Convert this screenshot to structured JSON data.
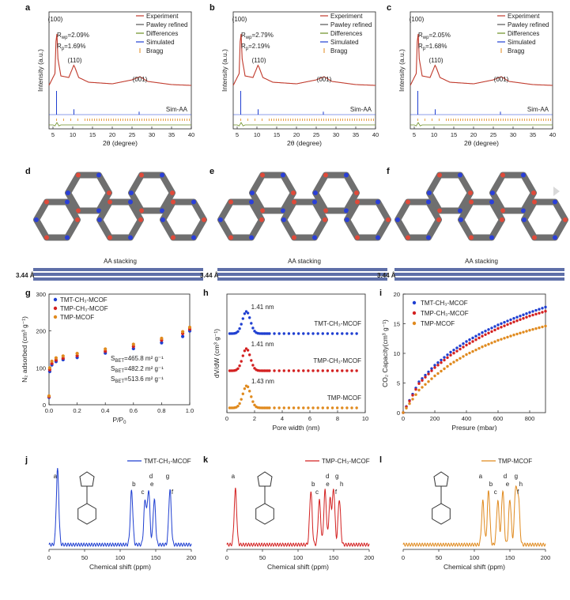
{
  "xrd": {
    "panels": [
      {
        "label": "a",
        "rwp": "2.09%",
        "rp": "1.69%"
      },
      {
        "label": "b",
        "rwp": "2.79%",
        "rp": "2.19%"
      },
      {
        "label": "c",
        "rwp": "2.05%",
        "rp": "1.68%"
      }
    ],
    "legend": [
      "Experiment",
      "Pawley refined",
      "Differences",
      "Simulated",
      "Bragg"
    ],
    "peaks": [
      "(100)",
      "(110)",
      "(001)"
    ],
    "sim_label": "Sim-AA",
    "xlabel": "2θ (degree)",
    "ylabel": "Intensity (a.u.)",
    "xticks": [
      "5",
      "10",
      "15",
      "20",
      "25",
      "30",
      "35",
      "40"
    ],
    "colors": {
      "experiment": "#c0392b",
      "pawley": "#555555",
      "difference": "#6b8e23",
      "simulated": "#1f3fd1",
      "bragg": "#e08a1e"
    }
  },
  "structures": {
    "panels": [
      {
        "label": "d"
      },
      {
        "label": "e"
      },
      {
        "label": "f"
      }
    ],
    "stack_label": "AA stacking",
    "spacing": "3.44 Å"
  },
  "n2": {
    "label": "g",
    "xlabel": "P/P",
    "xlabel_sub": "0",
    "ylabel": "N₂ adsorbed (cm³ g⁻¹)",
    "yticks": [
      "0",
      "100",
      "200",
      "300"
    ],
    "xticks": [
      "0.0",
      "0.2",
      "0.4",
      "0.6",
      "0.8",
      "1.0"
    ],
    "legend": [
      "TMT-CH₃-MCOF",
      "TMP-CH₃-MCOF",
      "TMP-MCOF"
    ],
    "sbet": [
      "S",
      "S",
      "S"
    ],
    "sbet_vals": [
      "465.8 m² g⁻¹",
      "482.2 m² g⁻¹",
      "513.6 m² g⁻¹"
    ]
  },
  "pore": {
    "label": "h",
    "xlabel": "Pore width (nm)",
    "ylabel": "dV/dW (cm³ g⁻¹)",
    "xticks": [
      "0",
      "2",
      "4",
      "6",
      "8",
      "10"
    ],
    "peaks": [
      "1.41 nm",
      "1.41 nm",
      "1.43 nm"
    ],
    "names": [
      "TMT-CH₃-MCOF",
      "TMP-CH₃-MCOF",
      "TMP-MCOF"
    ]
  },
  "co2": {
    "label": "i",
    "xlabel": "Presure (mbar)",
    "ylabel": "CO₂ Capacity(cm³ g⁻¹)",
    "xticks": [
      "0",
      "200",
      "400",
      "600",
      "800"
    ],
    "yticks": [
      "0",
      "5",
      "10",
      "15",
      "20"
    ],
    "legend": [
      "TMT-CH₃-MCOF",
      "TMP-CH₃-MCOF",
      "TMP-MCOF"
    ]
  },
  "nmr": {
    "xlabel": "Chemical shift (ppm)",
    "xticks": [
      "0",
      "50",
      "100",
      "150",
      "200"
    ],
    "panels": [
      {
        "label": "j",
        "name": "TMT-CH₃-MCOF",
        "peaks": [
          "a",
          "b",
          "c",
          "d",
          "e",
          "f",
          "g"
        ]
      },
      {
        "label": "k",
        "name": "TMP-CH₃-MCOF",
        "peaks": [
          "a",
          "b",
          "c",
          "d",
          "e",
          "f",
          "g",
          "h"
        ]
      },
      {
        "label": "l",
        "name": "TMP-MCOF",
        "peaks": [
          "a",
          "b",
          "c",
          "d",
          "e",
          "f",
          "g",
          "h"
        ]
      }
    ]
  },
  "chart_data": [
    {
      "type": "line",
      "title": "a",
      "xlabel": "2θ (degree)",
      "ylabel": "Intensity (a.u.)",
      "xlim": [
        4,
        40
      ],
      "series": [
        {
          "name": "Experiment",
          "x": [
            4,
            5.5,
            5.9,
            6.2,
            7,
            9,
            10.3,
            11.5,
            14,
            20,
            25,
            27,
            29,
            35,
            40
          ],
          "values": [
            0.2,
            0.35,
            1.0,
            0.55,
            0.32,
            0.3,
            0.46,
            0.3,
            0.24,
            0.22,
            0.27,
            0.31,
            0.25,
            0.21,
            0.2
          ]
        }
      ]
    },
    {
      "type": "line",
      "title": "b",
      "xlabel": "2θ (degree)",
      "ylabel": "Intensity (a.u.)",
      "xlim": [
        4,
        40
      ],
      "series": [
        {
          "name": "Experiment",
          "x": [
            4,
            5.5,
            5.9,
            6.2,
            7,
            9,
            10.3,
            11.5,
            14,
            20,
            25,
            27,
            29,
            35,
            40
          ],
          "values": [
            0.2,
            0.35,
            1.0,
            0.55,
            0.32,
            0.3,
            0.46,
            0.3,
            0.24,
            0.22,
            0.27,
            0.31,
            0.25,
            0.21,
            0.2
          ]
        }
      ]
    },
    {
      "type": "line",
      "title": "c",
      "xlabel": "2θ (degree)",
      "ylabel": "Intensity (a.u.)",
      "xlim": [
        4,
        40
      ],
      "series": [
        {
          "name": "Experiment",
          "x": [
            4,
            5.5,
            5.9,
            6.2,
            7,
            9,
            10.3,
            11.5,
            14,
            20,
            25,
            27,
            29,
            35,
            40
          ],
          "values": [
            0.2,
            0.35,
            1.0,
            0.55,
            0.32,
            0.3,
            0.46,
            0.3,
            0.24,
            0.22,
            0.27,
            0.31,
            0.25,
            0.21,
            0.2
          ]
        }
      ]
    },
    {
      "type": "scatter",
      "title": "g",
      "xlabel": "P/P0",
      "ylabel": "N2 adsorbed (cm3 g-1)",
      "xlim": [
        0,
        1
      ],
      "ylim": [
        0,
        300
      ],
      "series": [
        {
          "name": "TMT-CH₃-MCOF",
          "x": [
            0,
            0.005,
            0.02,
            0.05,
            0.1,
            0.2,
            0.4,
            0.6,
            0.8,
            0.95,
            1.0
          ],
          "values": [
            20,
            90,
            108,
            117,
            122,
            128,
            140,
            152,
            168,
            185,
            200
          ]
        },
        {
          "name": "TMP-CH₃-MCOF",
          "x": [
            0,
            0.005,
            0.02,
            0.05,
            0.1,
            0.2,
            0.4,
            0.6,
            0.8,
            0.95,
            1.0
          ],
          "values": [
            22,
            95,
            112,
            121,
            126,
            133,
            145,
            158,
            175,
            193,
            205
          ]
        },
        {
          "name": "TMP-MCOF",
          "x": [
            0,
            0.005,
            0.02,
            0.05,
            0.1,
            0.2,
            0.4,
            0.6,
            0.8,
            0.95,
            1.0
          ],
          "values": [
            24,
            100,
            118,
            127,
            132,
            139,
            151,
            164,
            180,
            198,
            210
          ]
        }
      ]
    },
    {
      "type": "scatter",
      "title": "h",
      "xlabel": "Pore width (nm)",
      "ylabel": "dV/dW (cm3 g-1)",
      "xlim": [
        0,
        10
      ],
      "series": [
        {
          "name": "TMT-CH₃-MCOF",
          "peak_nm": 1.41
        },
        {
          "name": "TMP-CH₃-MCOF",
          "peak_nm": 1.41
        },
        {
          "name": "TMP-MCOF",
          "peak_nm": 1.43
        }
      ]
    },
    {
      "type": "scatter",
      "title": "i",
      "xlabel": "Presure (mbar)",
      "ylabel": "CO2 Capacity(cm3 g-1)",
      "xlim": [
        0,
        900
      ],
      "ylim": [
        0,
        20
      ],
      "series": [
        {
          "name": "TMT-CH₃-MCOF",
          "x": [
            0,
            100,
            200,
            300,
            400,
            500,
            600,
            700,
            800,
            900
          ],
          "values": [
            0,
            5.2,
            8.0,
            10.2,
            12.0,
            13.5,
            14.8,
            15.9,
            16.9,
            17.8
          ]
        },
        {
          "name": "TMP-CH₃-MCOF",
          "x": [
            0,
            100,
            200,
            300,
            400,
            500,
            600,
            700,
            800,
            900
          ],
          "values": [
            0,
            4.9,
            7.6,
            9.7,
            11.4,
            12.9,
            14.2,
            15.3,
            16.3,
            17.1
          ]
        },
        {
          "name": "TMP-MCOF",
          "x": [
            0,
            100,
            200,
            300,
            400,
            500,
            600,
            700,
            800,
            900
          ],
          "values": [
            0,
            3.8,
            6.2,
            8.2,
            9.8,
            11.1,
            12.2,
            13.1,
            13.9,
            14.6
          ]
        }
      ]
    },
    {
      "type": "line",
      "title": "j",
      "xlabel": "Chemical shift (ppm)",
      "xlim": [
        0,
        200
      ],
      "peaks_ppm": [
        12,
        116,
        135,
        140,
        148,
        170
      ]
    },
    {
      "type": "line",
      "title": "k",
      "xlabel": "Chemical shift (ppm)",
      "xlim": [
        0,
        200
      ],
      "peaks_ppm": [
        12,
        118,
        130,
        138,
        145,
        150,
        158
      ]
    },
    {
      "type": "line",
      "title": "l",
      "xlabel": "Chemical shift (ppm)",
      "xlim": [
        0,
        200
      ],
      "peaks_ppm": [
        112,
        120,
        133,
        140,
        150,
        158,
        162
      ]
    }
  ]
}
